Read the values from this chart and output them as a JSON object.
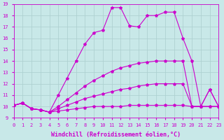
{
  "xlabel": "Windchill (Refroidissement éolien,°C)",
  "xlim": [
    0,
    23
  ],
  "ylim": [
    9,
    19
  ],
  "xticks": [
    0,
    1,
    2,
    3,
    4,
    5,
    6,
    7,
    8,
    9,
    10,
    11,
    12,
    13,
    14,
    15,
    16,
    17,
    18,
    19,
    20,
    21,
    22,
    23
  ],
  "yticks": [
    9,
    10,
    11,
    12,
    13,
    14,
    15,
    16,
    17,
    18,
    19
  ],
  "background_color": "#c8e8e8",
  "grid_color": "#aacece",
  "line_color": "#cc00cc",
  "line1_x": [
    0,
    1,
    2,
    3,
    4,
    5,
    6,
    7,
    8,
    9,
    10,
    11,
    12,
    13,
    14,
    15,
    16,
    17,
    18,
    19,
    20,
    21,
    22,
    23
  ],
  "line1_y": [
    10.1,
    10.3,
    9.8,
    9.7,
    9.5,
    9.6,
    9.7,
    9.8,
    9.9,
    10.0,
    10.0,
    10.0,
    10.0,
    10.1,
    10.1,
    10.1,
    10.1,
    10.1,
    10.1,
    10.1,
    10.0,
    10.0,
    10.0,
    10.0
  ],
  "line2_x": [
    0,
    1,
    2,
    3,
    4,
    5,
    6,
    7,
    8,
    9,
    10,
    11,
    12,
    13,
    14,
    15,
    16,
    17,
    18,
    19,
    20,
    21,
    22,
    23
  ],
  "line2_y": [
    10.1,
    10.3,
    9.8,
    9.7,
    9.5,
    9.8,
    10.1,
    10.4,
    10.7,
    10.9,
    11.1,
    11.3,
    11.5,
    11.6,
    11.8,
    11.9,
    12.0,
    12.0,
    12.0,
    12.0,
    10.0,
    10.0,
    10.0,
    10.0
  ],
  "line3_x": [
    0,
    1,
    2,
    3,
    4,
    5,
    6,
    7,
    8,
    9,
    10,
    11,
    12,
    13,
    14,
    15,
    16,
    17,
    18,
    19,
    20,
    21,
    22,
    23
  ],
  "line3_y": [
    10.1,
    10.3,
    9.8,
    9.7,
    9.5,
    10.0,
    10.6,
    11.2,
    11.8,
    12.3,
    12.7,
    13.1,
    13.4,
    13.6,
    13.8,
    13.9,
    14.0,
    14.0,
    14.0,
    14.0,
    10.0,
    10.0,
    11.5,
    10.0
  ],
  "line4_x": [
    0,
    1,
    2,
    3,
    4,
    5,
    6,
    7,
    8,
    9,
    10,
    11,
    12,
    13,
    14,
    15,
    16,
    17,
    18,
    19,
    20,
    21,
    22,
    23
  ],
  "line4_y": [
    10.1,
    10.3,
    9.8,
    9.7,
    9.5,
    11.0,
    12.5,
    14.0,
    15.5,
    16.5,
    16.7,
    18.7,
    18.7,
    17.1,
    17.0,
    18.0,
    18.0,
    18.3,
    18.3,
    16.0,
    14.0,
    10.0,
    11.5,
    10.0
  ],
  "marker": "*",
  "markersize": 3,
  "linewidth": 0.8,
  "tick_fontsize": 5.0,
  "label_fontsize": 6.0
}
